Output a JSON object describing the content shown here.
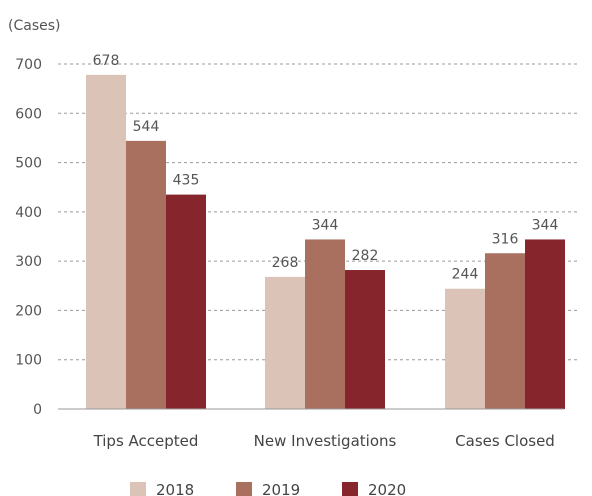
{
  "chart_data": {
    "type": "bar",
    "unit_label": "(Cases)",
    "categories": [
      "Tips Accepted",
      "New Investigations",
      "Cases Closed"
    ],
    "series": [
      {
        "name": "2018",
        "values": [
          678,
          268,
          244
        ],
        "color": "#dcc3b8"
      },
      {
        "name": "2019",
        "values": [
          544,
          344,
          316
        ],
        "color": "#a97060"
      },
      {
        "name": "2020",
        "values": [
          435,
          282,
          344
        ],
        "color": "#86262c"
      }
    ],
    "ylim": [
      0,
      700
    ],
    "yticks": [
      "0",
      "100",
      "200",
      "300",
      "400",
      "500",
      "600",
      "700"
    ],
    "grid": true,
    "grid_style": "dashed",
    "legend_position": "bottom-center"
  }
}
